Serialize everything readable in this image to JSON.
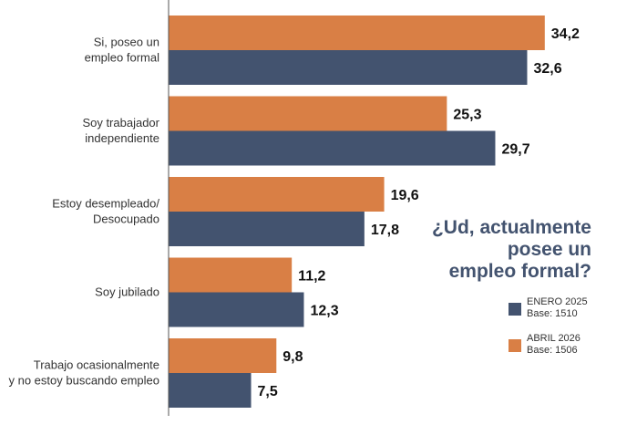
{
  "chart_data": {
    "type": "bar",
    "orientation": "horizontal",
    "title": "¿Ud, actualmente posee un empleo formal?",
    "title_lines": [
      "¿Ud, actualmente",
      "posee un",
      "empleo formal?"
    ],
    "categories": [
      [
        "Si, poseo un",
        "empleo formal"
      ],
      [
        "Soy trabajador",
        "independiente"
      ],
      [
        "Estoy desempleado/",
        "Desocupado"
      ],
      [
        "Soy jubilado"
      ],
      [
        "Trabajo ocasionalmente",
        "y no estoy buscando empleo"
      ]
    ],
    "series": [
      {
        "name": "ABRIL 2026",
        "base": "Base: 1506",
        "color": "#D97F45",
        "values": [
          34.2,
          25.3,
          19.6,
          11.2,
          9.8
        ],
        "labels": [
          "34,2",
          "25,3",
          "19,6",
          "11,2",
          "9,8"
        ]
      },
      {
        "name": "ENERO 2025",
        "base": "Base: 1510",
        "color": "#43536F",
        "values": [
          32.6,
          29.7,
          17.8,
          12.3,
          7.5
        ],
        "labels": [
          "32,6",
          "29,7",
          "17,8",
          "12,3",
          "7,5"
        ]
      }
    ],
    "legend_order": [
      1,
      0
    ],
    "legend_position": "right",
    "xlim": [
      0,
      40
    ],
    "grid": false
  }
}
